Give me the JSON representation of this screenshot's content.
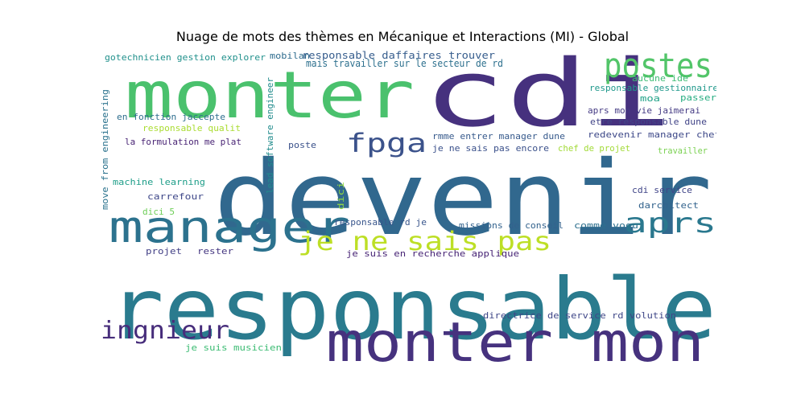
{
  "title": "Nuage de mots des thèmes en Mécanique et Interactions (MI) - Global",
  "words": [
    {
      "text": "devenir",
      "color": "#31688e"
    },
    {
      "text": "responsable",
      "color": "#2a7b8e"
    },
    {
      "text": "monter mon",
      "color": "#46327e"
    },
    {
      "text": "cdi",
      "color": "#46317e"
    },
    {
      "text": "monter",
      "color": "#4ac16d"
    },
    {
      "text": "manager",
      "color": "#2c728e"
    },
    {
      "text": "postes",
      "color": "#52c569"
    },
    {
      "text": "je ne sais pas",
      "color": "#bddf26"
    },
    {
      "text": "aprs",
      "color": "#2a788e"
    },
    {
      "text": "ingnieur",
      "color": "#472d7b"
    },
    {
      "text": "fpga",
      "color": "#3b528b"
    },
    {
      "text": "responsable daffaires trouver",
      "color": "#365d8d"
    },
    {
      "text": "mais travailler sur le secteur de rd",
      "color": "#2d708e"
    },
    {
      "text": "mobilan",
      "color": "#2f6c8e"
    },
    {
      "text": "gotechnicien gestion explorer",
      "color": "#21918c"
    },
    {
      "text": "responsable gestionnaire",
      "color": "#1f988b"
    },
    {
      "text": "aucune ide",
      "color": "#3dbc74"
    },
    {
      "text": "moa",
      "color": "#1fa187"
    },
    {
      "text": "passer",
      "color": "#27ad81"
    },
    {
      "text": "aprs mon vie jaimerai",
      "color": "#443a83"
    },
    {
      "text": "etre responsable dune",
      "color": "#414487"
    },
    {
      "text": "redevenir manager chef",
      "color": "#3e4989"
    },
    {
      "text": "travailler",
      "color": "#7ad151"
    },
    {
      "text": "chef de projet",
      "color": "#a2da37"
    },
    {
      "text": "je ne sais pas encore",
      "color": "#3b518b"
    },
    {
      "text": "rmme entrer manager dune",
      "color": "#375a8c"
    },
    {
      "text": "en fonction jaccepte",
      "color": "#2e6e8e"
    },
    {
      "text": "responsable qualit",
      "color": "#aadc32"
    },
    {
      "text": "la formulation me plat",
      "color": "#482374"
    },
    {
      "text": "poste",
      "color": "#3b528b"
    },
    {
      "text": "move from engineering",
      "color": "#2c738e"
    },
    {
      "text": "machine learning",
      "color": "#1f9e89"
    },
    {
      "text": "carrefour",
      "color": "#3f4889"
    },
    {
      "text": "dici 5",
      "color": "#6ece58"
    },
    {
      "text": "lead software engineer",
      "color": "#228c8d"
    },
    {
      "text": "dici",
      "color": "#90d743"
    },
    {
      "text": "cdi service",
      "color": "#404588"
    },
    {
      "text": "darchitect",
      "color": "#33638d"
    },
    {
      "text": "responsable rd je",
      "color": "#39568c"
    },
    {
      "text": "missions de conseil",
      "color": "#33628d"
    },
    {
      "text": "comme voqu",
      "color": "#2d708e"
    },
    {
      "text": "projet",
      "color": "#424086"
    },
    {
      "text": "rester",
      "color": "#453781"
    },
    {
      "text": "je suis en recherche applique",
      "color": "#482576"
    },
    {
      "text": "directrice de service rd volution",
      "color": "#3f4788"
    },
    {
      "text": "je suis musicien",
      "color": "#3dbc74"
    }
  ]
}
